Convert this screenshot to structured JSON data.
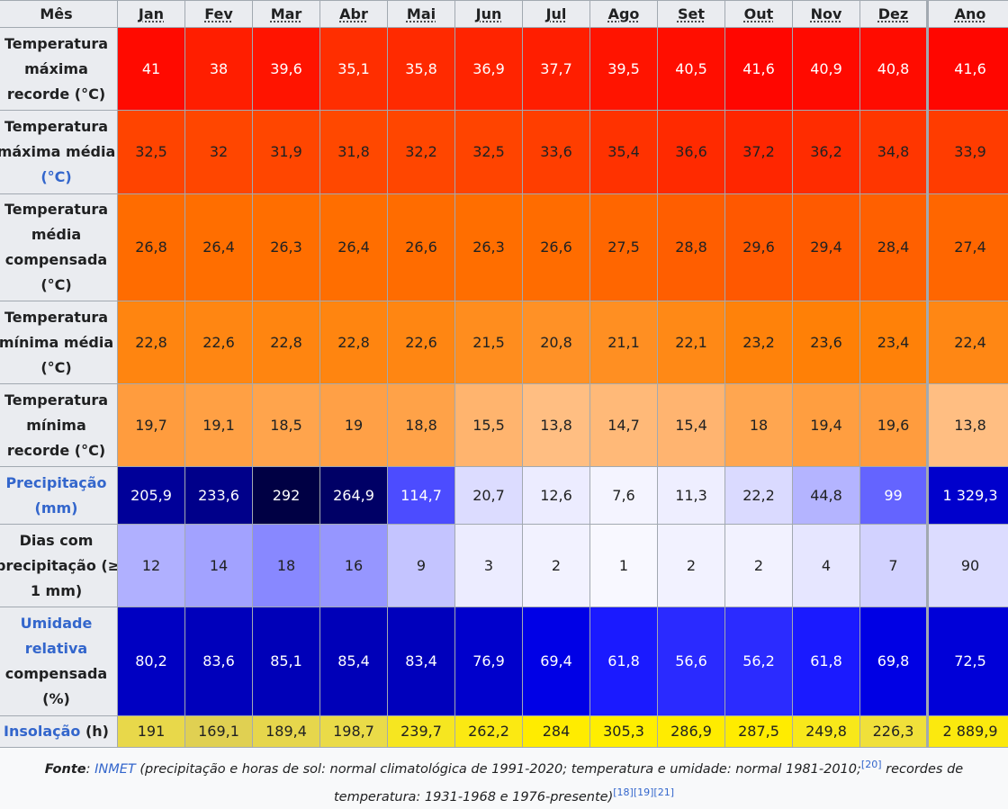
{
  "table": {
    "header": {
      "label": "Mês",
      "months": [
        "Jan",
        "Fev",
        "Mar",
        "Abr",
        "Mai",
        "Jun",
        "Jul",
        "Ago",
        "Set",
        "Out",
        "Nov",
        "Dez",
        "Ano"
      ]
    },
    "rows": [
      {
        "label_lines": [
          "Temperatura",
          "máxima",
          "recorde (°C)"
        ],
        "values": [
          "41",
          "38",
          "39,6",
          "35,1",
          "35,8",
          "36,9",
          "37,7",
          "39,5",
          "40,5",
          "41,6",
          "40,9",
          "40,8",
          "41,6"
        ],
        "bg": [
          "#ff0a00",
          "#ff1e00",
          "#ff1400",
          "#ff2e00",
          "#ff2a00",
          "#ff2400",
          "#ff1e00",
          "#ff1400",
          "#ff0e00",
          "#ff0600",
          "#ff0a00",
          "#ff0c00",
          "#ff0600"
        ],
        "fg": "#ffffff"
      },
      {
        "label_lines": [
          "Temperatura",
          "máxima média",
          "(°C)"
        ],
        "label_link_last": true,
        "values": [
          "32,5",
          "32",
          "31,9",
          "31,8",
          "32,2",
          "32,5",
          "33,6",
          "35,4",
          "36,6",
          "37,2",
          "36,2",
          "34,8",
          "33,9"
        ],
        "bg": [
          "#ff4400",
          "#ff4600",
          "#ff4600",
          "#ff4800",
          "#ff4600",
          "#ff4400",
          "#ff3e00",
          "#ff3200",
          "#ff2a00",
          "#ff2600",
          "#ff2c00",
          "#ff3600",
          "#ff3c00"
        ],
        "fg": "#202122"
      },
      {
        "label_lines": [
          "Temperatura",
          "média",
          "compensada",
          "(°C)"
        ],
        "values": [
          "26,8",
          "26,4",
          "26,3",
          "26,4",
          "26,6",
          "26,3",
          "26,6",
          "27,5",
          "28,8",
          "29,6",
          "29,4",
          "28,4",
          "27,4"
        ],
        "bg": [
          "#ff6c00",
          "#ff6e00",
          "#ff6e00",
          "#ff6e00",
          "#ff6c00",
          "#ff6e00",
          "#ff6c00",
          "#ff6600",
          "#ff5e00",
          "#ff5800",
          "#ff5a00",
          "#ff6000",
          "#ff6600"
        ],
        "fg": "#202122"
      },
      {
        "label_lines": [
          "Temperatura",
          "mínima média",
          "(°C)"
        ],
        "values": [
          "22,8",
          "22,6",
          "22,8",
          "22,8",
          "22,6",
          "21,5",
          "20,8",
          "21,1",
          "22,1",
          "23,2",
          "23,6",
          "23,4",
          "22,4"
        ],
        "bg": [
          "#ff8510",
          "#ff8612",
          "#ff8510",
          "#ff8510",
          "#ff8612",
          "#ff8d1e",
          "#ff9126",
          "#ff8f22",
          "#ff8916",
          "#ff820a",
          "#ff8006",
          "#ff8108",
          "#ff8714"
        ],
        "fg": "#202122"
      },
      {
        "label_lines": [
          "Temperatura",
          "mínima",
          "recorde (°C)"
        ],
        "values": [
          "19,7",
          "19,1",
          "18,5",
          "19",
          "18,8",
          "15,5",
          "13,8",
          "14,7",
          "15,4",
          "18",
          "19,4",
          "19,6",
          "13,8"
        ],
        "bg": [
          "#ff9c3e",
          "#ffa044",
          "#ffa44c",
          "#ffa046",
          "#ffa248",
          "#ffb46e",
          "#ffbe82",
          "#ffb978",
          "#ffb470",
          "#ffa650",
          "#ff9e40",
          "#ff9c3e",
          "#ffbe82"
        ],
        "fg": "#202122"
      },
      {
        "label_lines": [
          "Precipitação",
          "(mm)"
        ],
        "label_link": true,
        "values": [
          "205,9",
          "233,6",
          "292",
          "264,9",
          "114,7",
          "20,7",
          "12,6",
          "7,6",
          "11,3",
          "22,2",
          "44,8",
          "99",
          "1 329,3"
        ],
        "bg": [
          "#000099",
          "#00008a",
          "#000044",
          "#000066",
          "#4c4cff",
          "#dcdcff",
          "#ececff",
          "#f4f4ff",
          "#eeeeff",
          "#dadaff",
          "#b4b4ff",
          "#6464ff",
          "#0000cc"
        ],
        "fg_light": "#ffffff",
        "fg_dark": "#202122",
        "dark_text_idx": [
          5,
          6,
          7,
          8,
          9,
          10
        ]
      },
      {
        "label_lines": [
          "Dias com",
          "precipitação (≥",
          "1 mm)"
        ],
        "values": [
          "12",
          "14",
          "18",
          "16",
          "9",
          "3",
          "2",
          "1",
          "2",
          "2",
          "4",
          "7",
          "90"
        ],
        "bg": [
          "#b0b0ff",
          "#a2a2ff",
          "#8888ff",
          "#9696ff",
          "#c4c4ff",
          "#ececff",
          "#f2f2ff",
          "#f8f8ff",
          "#f2f2ff",
          "#f2f2ff",
          "#e6e6ff",
          "#d2d2ff",
          "#dcdcff"
        ],
        "fg": "#202122"
      },
      {
        "label_lines": [
          "Umidade",
          "relativa",
          "compensada",
          "(%)"
        ],
        "label_link_first2": true,
        "values": [
          "80,2",
          "83,6",
          "85,1",
          "85,4",
          "83,4",
          "76,9",
          "69,4",
          "61,8",
          "56,6",
          "56,2",
          "61,8",
          "69,8",
          "72,5"
        ],
        "bg": [
          "#0000c2",
          "#0000bb",
          "#0000b8",
          "#0000b8",
          "#0000bc",
          "#0000cc",
          "#0000e6",
          "#1a1aff",
          "#2a2aff",
          "#2b2bff",
          "#1a1aff",
          "#0000e4",
          "#0000d8"
        ],
        "fg": "#ffffff"
      },
      {
        "label_lines": [
          "Insolação (h)"
        ],
        "label_link_word": "Insolação",
        "label_rest": " (h)",
        "values": [
          "191",
          "169,1",
          "189,4",
          "198,7",
          "239,7",
          "262,2",
          "284",
          "305,3",
          "286,9",
          "287,5",
          "249,8",
          "226,3",
          "2 889,9"
        ],
        "bg": [
          "#e8d84a",
          "#e0d052",
          "#e6d64c",
          "#eadb48",
          "#f6e620",
          "#fbe912",
          "#ffec00",
          "#ffee00",
          "#ffec00",
          "#ffec00",
          "#f8e81a",
          "#f0e03a",
          "#fbe90e"
        ],
        "fg": "#202122"
      }
    ]
  },
  "caption": {
    "fonte_label": "Fonte",
    "inmet": "INMET",
    "text1": " (precipitação e horas de sol: normal climatológica de 1991-2020; temperatura e umidade: normal 1981-2010;",
    "ref20": "[20]",
    "text2": " recordes de temperatura: 1931-1968 e 1976-presente)",
    "refs": "[18][19][21]"
  }
}
